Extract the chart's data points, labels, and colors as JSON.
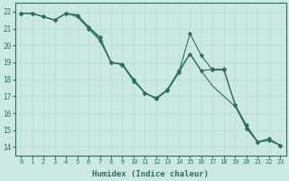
{
  "xlabel": "Humidex (Indice chaleur)",
  "ylabel": "",
  "bg_color": "#cce8e4",
  "grid_color": "#b8d8d4",
  "line_color": "#2a7060",
  "xlim": [
    -0.5,
    23.5
  ],
  "ylim": [
    13.5,
    22.5
  ],
  "xticks": [
    0,
    1,
    2,
    3,
    4,
    5,
    6,
    7,
    8,
    9,
    10,
    11,
    12,
    13,
    14,
    15,
    16,
    17,
    18,
    19,
    20,
    21,
    22,
    23
  ],
  "yticks": [
    14,
    15,
    16,
    17,
    18,
    19,
    20,
    21,
    22
  ],
  "line1_x": [
    0,
    1,
    2,
    3,
    4,
    5,
    6,
    7,
    8,
    9,
    10,
    11,
    12,
    13,
    14,
    15,
    16,
    17,
    18,
    19,
    20,
    21,
    22,
    23
  ],
  "line1_y": [
    21.9,
    21.9,
    21.7,
    21.5,
    21.9,
    21.7,
    21.0,
    20.3,
    19.0,
    18.85,
    17.9,
    17.2,
    16.9,
    17.4,
    18.5,
    19.5,
    18.5,
    18.6,
    18.6,
    16.5,
    15.3,
    14.3,
    14.5,
    14.1
  ],
  "line2_x": [
    0,
    1,
    2,
    3,
    4,
    5,
    6,
    7,
    8,
    9,
    10,
    11,
    12,
    13,
    14,
    15,
    16,
    17,
    18,
    19,
    20,
    21,
    22,
    23
  ],
  "line2_y": [
    21.9,
    21.9,
    21.7,
    21.5,
    21.9,
    21.8,
    21.1,
    20.5,
    19.0,
    18.9,
    18.0,
    17.2,
    16.85,
    17.35,
    18.4,
    20.7,
    19.4,
    18.55,
    18.55,
    16.5,
    15.1,
    14.3,
    14.4,
    14.1
  ],
  "line3_x": [
    0,
    1,
    2,
    3,
    4,
    5,
    6,
    7,
    8,
    9,
    10,
    11,
    12,
    13,
    14,
    15,
    16,
    17,
    18,
    19,
    20,
    21,
    22,
    23
  ],
  "line3_y": [
    21.9,
    21.9,
    21.7,
    21.5,
    21.9,
    21.8,
    21.1,
    20.4,
    19.0,
    18.9,
    17.9,
    17.2,
    16.85,
    17.35,
    18.4,
    19.5,
    18.5,
    17.6,
    17.0,
    16.4,
    15.2,
    14.3,
    14.4,
    14.1
  ]
}
